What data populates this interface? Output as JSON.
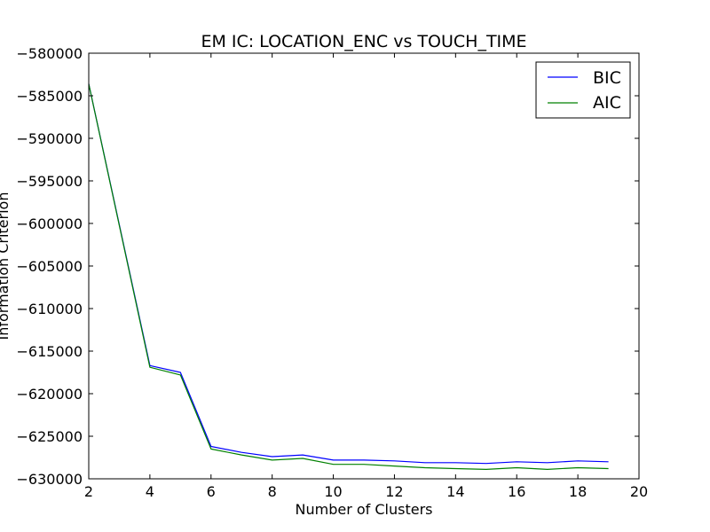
{
  "colors": {
    "background": "#ffffff",
    "axes": "#000000",
    "bic": "#0000ff",
    "aic": "#008000"
  },
  "chart_data": {
    "type": "line",
    "title": "EM IC: LOCATION_ENC vs TOUCH_TIME",
    "xlabel": "Number of Clusters",
    "ylabel": "Information Criterion",
    "xlim": [
      2,
      20
    ],
    "ylim": [
      -630000,
      -580000
    ],
    "x_ticks": [
      2,
      4,
      6,
      8,
      10,
      12,
      14,
      16,
      18,
      20
    ],
    "y_ticks": [
      -580000,
      -585000,
      -590000,
      -595000,
      -600000,
      -605000,
      -610000,
      -615000,
      -620000,
      -625000,
      -630000
    ],
    "x_tick_labels": [
      "2",
      "4",
      "6",
      "8",
      "10",
      "12",
      "14",
      "16",
      "18",
      "20"
    ],
    "y_tick_labels": [
      "−580000",
      "−585000",
      "−590000",
      "−595000",
      "−600000",
      "−605000",
      "−610000",
      "−615000",
      "−620000",
      "−625000",
      "−630000"
    ],
    "grid": false,
    "legend_position": "top-right",
    "x": [
      2,
      4,
      5,
      6,
      7,
      8,
      9,
      10,
      11,
      12,
      13,
      14,
      15,
      16,
      17,
      18,
      19
    ],
    "series": [
      {
        "name": "BIC",
        "color": "#0000ff",
        "values": [
          -583600,
          -616700,
          -617500,
          -626200,
          -626900,
          -627400,
          -627200,
          -627800,
          -627800,
          -627900,
          -628100,
          -628100,
          -628200,
          -628000,
          -628100,
          -627900,
          -628000
        ]
      },
      {
        "name": "AIC",
        "color": "#008000",
        "values": [
          -583600,
          -616900,
          -617800,
          -626500,
          -627200,
          -627800,
          -627600,
          -628300,
          -628300,
          -628500,
          -628700,
          -628800,
          -628900,
          -628700,
          -628900,
          -628700,
          -628800
        ]
      }
    ]
  }
}
